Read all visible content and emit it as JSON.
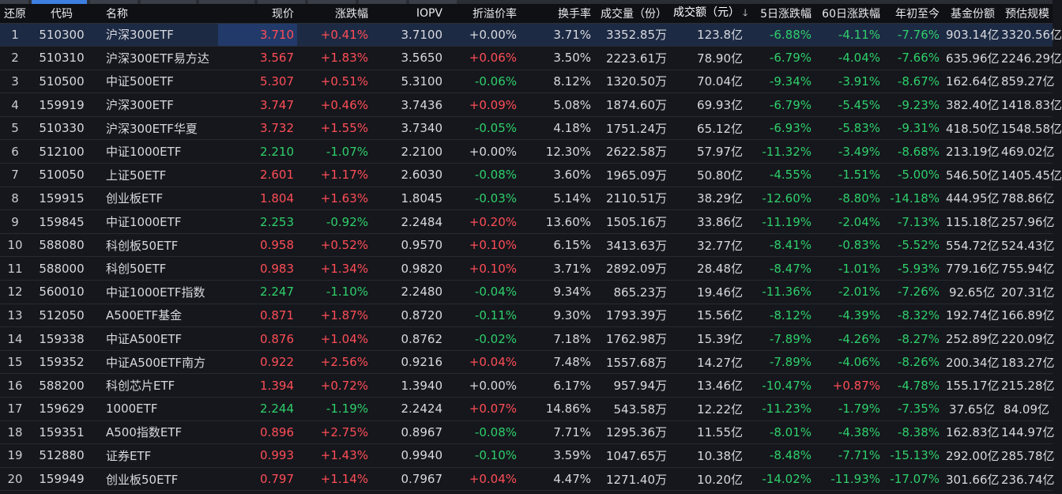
{
  "header": {
    "col_back": "还原",
    "col_code": "代码",
    "col_name": "名称",
    "col_price": "现价",
    "col_change": "涨跌幅",
    "col_iopv": "IOPV",
    "col_premium": "折溢价率",
    "col_turnover": "换手率",
    "col_volume": "成交量（份）",
    "col_amount": "成交额（元）",
    "col_5d": "5日涨跌幅",
    "col_60d": "60日涨跌幅",
    "col_ytd": "年初至今",
    "col_shares": "基金份额",
    "col_scale": "预估规模",
    "sort_icon": "arrow-down-icon"
  },
  "colors": {
    "up": "#ff4d57",
    "down": "#2fcf6b",
    "flat": "#d7d9de",
    "selected_row": "#1d2a44",
    "active_tab": "#3c7fe0"
  },
  "rows": [
    {
      "idx": "1",
      "code": "510300",
      "name": "沪深300ETF",
      "price": "3.710",
      "change": "+0.41%",
      "iopv": "3.7100",
      "premium": "+0.00%",
      "turnover": "3.71%",
      "volume": "3352.85万",
      "amount": "123.8亿",
      "d5": "-6.88%",
      "d60": "-4.11%",
      "ytd": "-7.76%",
      "shares": "903.14亿",
      "scale": "3320.56亿",
      "price_dir": "up",
      "change_dir": "up",
      "premium_dir": "flat",
      "d5_dir": "down",
      "d60_dir": "down",
      "ytd_dir": "down",
      "selected": true
    },
    {
      "idx": "2",
      "code": "510310",
      "name": "沪深300ETF易方达",
      "price": "3.567",
      "change": "+1.83%",
      "iopv": "3.5650",
      "premium": "+0.06%",
      "turnover": "3.50%",
      "volume": "2223.61万",
      "amount": "78.90亿",
      "d5": "-6.79%",
      "d60": "-4.04%",
      "ytd": "-7.66%",
      "shares": "635.96亿",
      "scale": "2246.29亿",
      "price_dir": "up",
      "change_dir": "up",
      "premium_dir": "up",
      "d5_dir": "down",
      "d60_dir": "down",
      "ytd_dir": "down"
    },
    {
      "idx": "3",
      "code": "510500",
      "name": "中证500ETF",
      "price": "5.307",
      "change": "+0.51%",
      "iopv": "5.3100",
      "premium": "-0.06%",
      "turnover": "8.12%",
      "volume": "1320.50万",
      "amount": "70.04亿",
      "d5": "-9.34%",
      "d60": "-3.91%",
      "ytd": "-8.67%",
      "shares": "162.64亿",
      "scale": "859.27亿",
      "price_dir": "up",
      "change_dir": "up",
      "premium_dir": "down",
      "d5_dir": "down",
      "d60_dir": "down",
      "ytd_dir": "down"
    },
    {
      "idx": "4",
      "code": "159919",
      "name": "沪深300ETF",
      "price": "3.747",
      "change": "+0.46%",
      "iopv": "3.7436",
      "premium": "+0.09%",
      "turnover": "5.08%",
      "volume": "1874.60万",
      "amount": "69.93亿",
      "d5": "-6.79%",
      "d60": "-5.45%",
      "ytd": "-9.23%",
      "shares": "382.40亿",
      "scale": "1418.83亿",
      "price_dir": "up",
      "change_dir": "up",
      "premium_dir": "up",
      "d5_dir": "down",
      "d60_dir": "down",
      "ytd_dir": "down"
    },
    {
      "idx": "5",
      "code": "510330",
      "name": "沪深300ETF华夏",
      "price": "3.732",
      "change": "+1.55%",
      "iopv": "3.7340",
      "premium": "-0.05%",
      "turnover": "4.18%",
      "volume": "1751.24万",
      "amount": "65.12亿",
      "d5": "-6.93%",
      "d60": "-5.83%",
      "ytd": "-9.31%",
      "shares": "418.50亿",
      "scale": "1548.58亿",
      "price_dir": "up",
      "change_dir": "up",
      "premium_dir": "down",
      "d5_dir": "down",
      "d60_dir": "down",
      "ytd_dir": "down"
    },
    {
      "idx": "6",
      "code": "512100",
      "name": "中证1000ETF",
      "price": "2.210",
      "change": "-1.07%",
      "iopv": "2.2100",
      "premium": "+0.00%",
      "turnover": "12.30%",
      "volume": "2622.58万",
      "amount": "57.97亿",
      "d5": "-11.32%",
      "d60": "-3.49%",
      "ytd": "-8.68%",
      "shares": "213.19亿",
      "scale": "469.02亿",
      "price_dir": "down",
      "change_dir": "down",
      "premium_dir": "flat",
      "d5_dir": "down",
      "d60_dir": "down",
      "ytd_dir": "down"
    },
    {
      "idx": "7",
      "code": "510050",
      "name": "上证50ETF",
      "price": "2.601",
      "change": "+1.17%",
      "iopv": "2.6030",
      "premium": "-0.08%",
      "turnover": "3.60%",
      "volume": "1965.09万",
      "amount": "50.80亿",
      "d5": "-4.55%",
      "d60": "-1.51%",
      "ytd": "-5.00%",
      "shares": "546.50亿",
      "scale": "1405.45亿",
      "price_dir": "up",
      "change_dir": "up",
      "premium_dir": "down",
      "d5_dir": "down",
      "d60_dir": "down",
      "ytd_dir": "down"
    },
    {
      "idx": "8",
      "code": "159915",
      "name": "创业板ETF",
      "price": "1.804",
      "change": "+1.63%",
      "iopv": "1.8045",
      "premium": "-0.03%",
      "turnover": "5.14%",
      "volume": "2110.51万",
      "amount": "38.29亿",
      "d5": "-12.60%",
      "d60": "-8.80%",
      "ytd": "-14.18%",
      "shares": "444.95亿",
      "scale": "788.86亿",
      "price_dir": "up",
      "change_dir": "up",
      "premium_dir": "down",
      "d5_dir": "down",
      "d60_dir": "down",
      "ytd_dir": "down"
    },
    {
      "idx": "9",
      "code": "159845",
      "name": "中证1000ETF",
      "price": "2.253",
      "change": "-0.92%",
      "iopv": "2.2484",
      "premium": "+0.20%",
      "turnover": "13.60%",
      "volume": "1505.16万",
      "amount": "33.86亿",
      "d5": "-11.19%",
      "d60": "-2.04%",
      "ytd": "-7.13%",
      "shares": "115.18亿",
      "scale": "257.96亿",
      "price_dir": "down",
      "change_dir": "down",
      "premium_dir": "up",
      "d5_dir": "down",
      "d60_dir": "down",
      "ytd_dir": "down"
    },
    {
      "idx": "10",
      "code": "588080",
      "name": "科创板50ETF",
      "price": "0.958",
      "change": "+0.52%",
      "iopv": "0.9570",
      "premium": "+0.10%",
      "turnover": "6.15%",
      "volume": "3413.63万",
      "amount": "32.77亿",
      "d5": "-8.41%",
      "d60": "-0.83%",
      "ytd": "-5.52%",
      "shares": "554.72亿",
      "scale": "524.43亿",
      "price_dir": "up",
      "change_dir": "up",
      "premium_dir": "up",
      "d5_dir": "down",
      "d60_dir": "down",
      "ytd_dir": "down"
    },
    {
      "idx": "11",
      "code": "588000",
      "name": "科创50ETF",
      "price": "0.983",
      "change": "+1.34%",
      "iopv": "0.9820",
      "premium": "+0.10%",
      "turnover": "3.71%",
      "volume": "2892.09万",
      "amount": "28.48亿",
      "d5": "-8.47%",
      "d60": "-1.01%",
      "ytd": "-5.93%",
      "shares": "779.16亿",
      "scale": "755.94亿",
      "price_dir": "up",
      "change_dir": "up",
      "premium_dir": "up",
      "d5_dir": "down",
      "d60_dir": "down",
      "ytd_dir": "down"
    },
    {
      "idx": "12",
      "code": "560010",
      "name": "中证1000ETF指数",
      "price": "2.247",
      "change": "-1.10%",
      "iopv": "2.2480",
      "premium": "-0.04%",
      "turnover": "9.34%",
      "volume": "865.23万",
      "amount": "19.46亿",
      "d5": "-11.36%",
      "d60": "-2.01%",
      "ytd": "-7.26%",
      "shares": "92.65亿",
      "scale": "207.31亿",
      "price_dir": "down",
      "change_dir": "down",
      "premium_dir": "down",
      "d5_dir": "down",
      "d60_dir": "down",
      "ytd_dir": "down"
    },
    {
      "idx": "13",
      "code": "512050",
      "name": "A500ETF基金",
      "price": "0.871",
      "change": "+1.87%",
      "iopv": "0.8720",
      "premium": "-0.11%",
      "turnover": "9.30%",
      "volume": "1793.39万",
      "amount": "15.56亿",
      "d5": "-8.12%",
      "d60": "-4.39%",
      "ytd": "-8.32%",
      "shares": "192.74亿",
      "scale": "166.89亿",
      "price_dir": "up",
      "change_dir": "up",
      "premium_dir": "down",
      "d5_dir": "down",
      "d60_dir": "down",
      "ytd_dir": "down"
    },
    {
      "idx": "14",
      "code": "159338",
      "name": "中证A500ETF",
      "price": "0.876",
      "change": "+1.04%",
      "iopv": "0.8762",
      "premium": "-0.02%",
      "turnover": "7.18%",
      "volume": "1762.98万",
      "amount": "15.39亿",
      "d5": "-7.89%",
      "d60": "-4.26%",
      "ytd": "-8.27%",
      "shares": "252.89亿",
      "scale": "220.09亿",
      "price_dir": "up",
      "change_dir": "up",
      "premium_dir": "down",
      "d5_dir": "down",
      "d60_dir": "down",
      "ytd_dir": "down"
    },
    {
      "idx": "15",
      "code": "159352",
      "name": "中证A500ETF南方",
      "price": "0.922",
      "change": "+2.56%",
      "iopv": "0.9216",
      "premium": "+0.04%",
      "turnover": "7.48%",
      "volume": "1557.68万",
      "amount": "14.27亿",
      "d5": "-7.89%",
      "d60": "-4.06%",
      "ytd": "-8.26%",
      "shares": "200.34亿",
      "scale": "183.27亿",
      "price_dir": "up",
      "change_dir": "up",
      "premium_dir": "up",
      "d5_dir": "down",
      "d60_dir": "down",
      "ytd_dir": "down"
    },
    {
      "idx": "16",
      "code": "588200",
      "name": "科创芯片ETF",
      "price": "1.394",
      "change": "+0.72%",
      "iopv": "1.3940",
      "premium": "+0.00%",
      "turnover": "6.17%",
      "volume": "957.94万",
      "amount": "13.46亿",
      "d5": "-10.47%",
      "d60": "+0.87%",
      "ytd": "-4.78%",
      "shares": "155.17亿",
      "scale": "215.28亿",
      "price_dir": "up",
      "change_dir": "up",
      "premium_dir": "flat",
      "d5_dir": "down",
      "d60_dir": "up",
      "ytd_dir": "down"
    },
    {
      "idx": "17",
      "code": "159629",
      "name": "1000ETF",
      "price": "2.244",
      "change": "-1.19%",
      "iopv": "2.2424",
      "premium": "+0.07%",
      "turnover": "14.86%",
      "volume": "543.58万",
      "amount": "12.22亿",
      "d5": "-11.23%",
      "d60": "-1.79%",
      "ytd": "-7.35%",
      "shares": "37.65亿",
      "scale": "84.09亿",
      "price_dir": "down",
      "change_dir": "down",
      "premium_dir": "up",
      "d5_dir": "down",
      "d60_dir": "down",
      "ytd_dir": "down"
    },
    {
      "idx": "18",
      "code": "159351",
      "name": "A500指数ETF",
      "price": "0.896",
      "change": "+2.75%",
      "iopv": "0.8967",
      "premium": "-0.08%",
      "turnover": "7.71%",
      "volume": "1295.36万",
      "amount": "11.55亿",
      "d5": "-8.01%",
      "d60": "-4.38%",
      "ytd": "-8.38%",
      "shares": "162.83亿",
      "scale": "144.97亿",
      "price_dir": "up",
      "change_dir": "up",
      "premium_dir": "down",
      "d5_dir": "down",
      "d60_dir": "down",
      "ytd_dir": "down"
    },
    {
      "idx": "19",
      "code": "512880",
      "name": "证券ETF",
      "price": "0.993",
      "change": "+1.43%",
      "iopv": "0.9940",
      "premium": "-0.10%",
      "turnover": "3.59%",
      "volume": "1047.65万",
      "amount": "10.38亿",
      "d5": "-8.48%",
      "d60": "-7.71%",
      "ytd": "-15.13%",
      "shares": "292.00亿",
      "scale": "285.78亿",
      "price_dir": "up",
      "change_dir": "up",
      "premium_dir": "down",
      "d5_dir": "down",
      "d60_dir": "down",
      "ytd_dir": "down"
    },
    {
      "idx": "20",
      "code": "159949",
      "name": "创业板50ETF",
      "price": "0.797",
      "change": "+1.14%",
      "iopv": "0.7967",
      "premium": "+0.04%",
      "turnover": "4.47%",
      "volume": "1271.40万",
      "amount": "10.20亿",
      "d5": "-14.02%",
      "d60": "-11.93%",
      "ytd": "-17.07%",
      "shares": "301.66亿",
      "scale": "236.74亿",
      "price_dir": "up",
      "change_dir": "up",
      "premium_dir": "up",
      "d5_dir": "down",
      "d60_dir": "down",
      "ytd_dir": "down"
    }
  ]
}
